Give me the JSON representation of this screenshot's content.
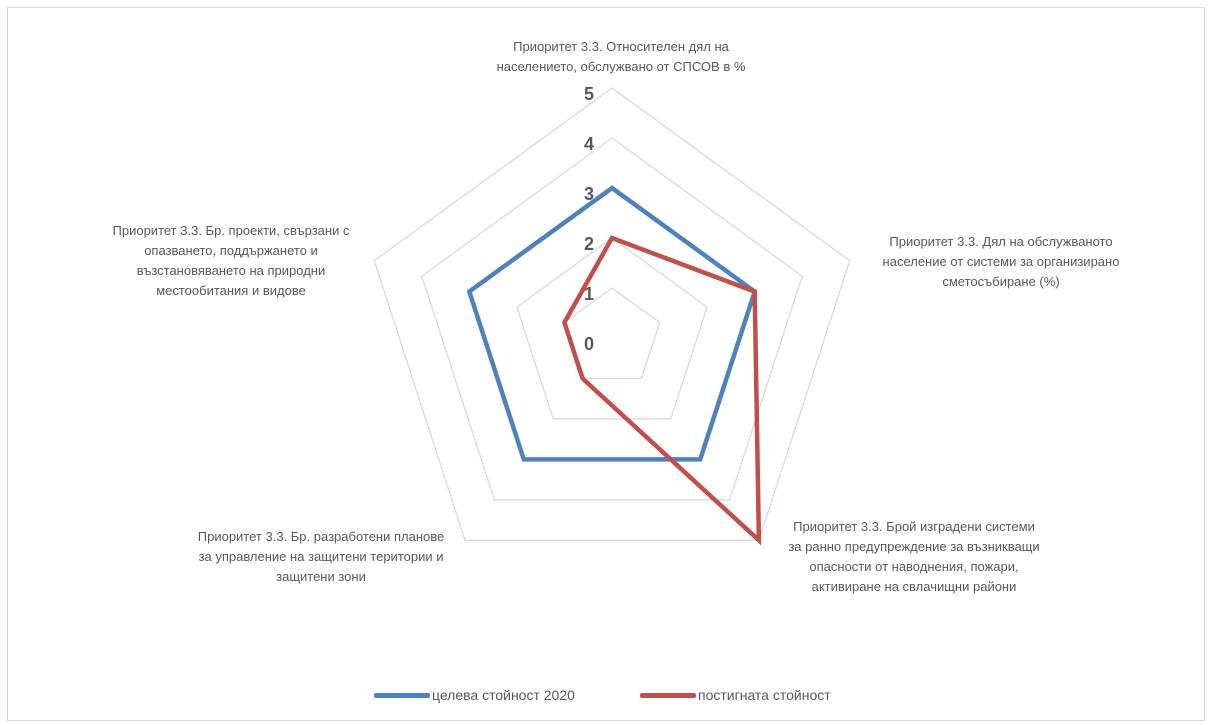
{
  "chart_data": {
    "type": "radar",
    "categories": [
      "Приоритет 3.3. Относителен дял на населението, обслужвано от СПСОВ в %",
      "Приоритет 3.3. Дял на обслужваното население от системи за организирано сметосъбиране (%)",
      "Приоритет 3.3. Брой изградени системи за ранно предупреждение за възникващи опасности от наводнения, пожари, активиране на свлачищни райони",
      "Приоритет 3.3. Бр. разработени планове за управление на защитени територии и защитени зони",
      "Приоритет 3.3. Бр. проекти, свързани с опазването, поддържането и възстановяването на природни местообитания и видове"
    ],
    "category_label_lines": [
      [
        "Приоритет 3.3. Относителен дял на",
        "населението, обслужвано от СПСОВ в %"
      ],
      [
        "Приоритет 3.3. Дял на обслужваното",
        "население от системи за организирано",
        "сметосъбиране (%)"
      ],
      [
        "Приоритет 3.3. Брой изградени системи",
        "за ранно предупреждение за възникващи",
        "опасности от наводнения, пожари,",
        "активиране на свлачищни райони"
      ],
      [
        "Приоритет 3.3. Бр. разработени планове",
        "за управление на защитени територии и",
        "защитени зони"
      ],
      [
        "Приоритет 3.3. Бр. проекти, свързани с",
        "опазването, поддържането и",
        "възстановяването на природни",
        "местообитания и видове"
      ]
    ],
    "ticks": [
      "0",
      "1",
      "2",
      "3",
      "4",
      "5"
    ],
    "rlim": [
      0,
      5
    ],
    "grid": true,
    "legend_position": "bottom",
    "series": [
      {
        "name": "целева стойност 2020",
        "color": "#4f81bd",
        "values": [
          3,
          3,
          3,
          3,
          3
        ]
      },
      {
        "name": "постигната стойност",
        "color": "#c0504d",
        "values": [
          2,
          3,
          5,
          1,
          1
        ]
      }
    ],
    "grid_color": "#d9d9d9"
  }
}
